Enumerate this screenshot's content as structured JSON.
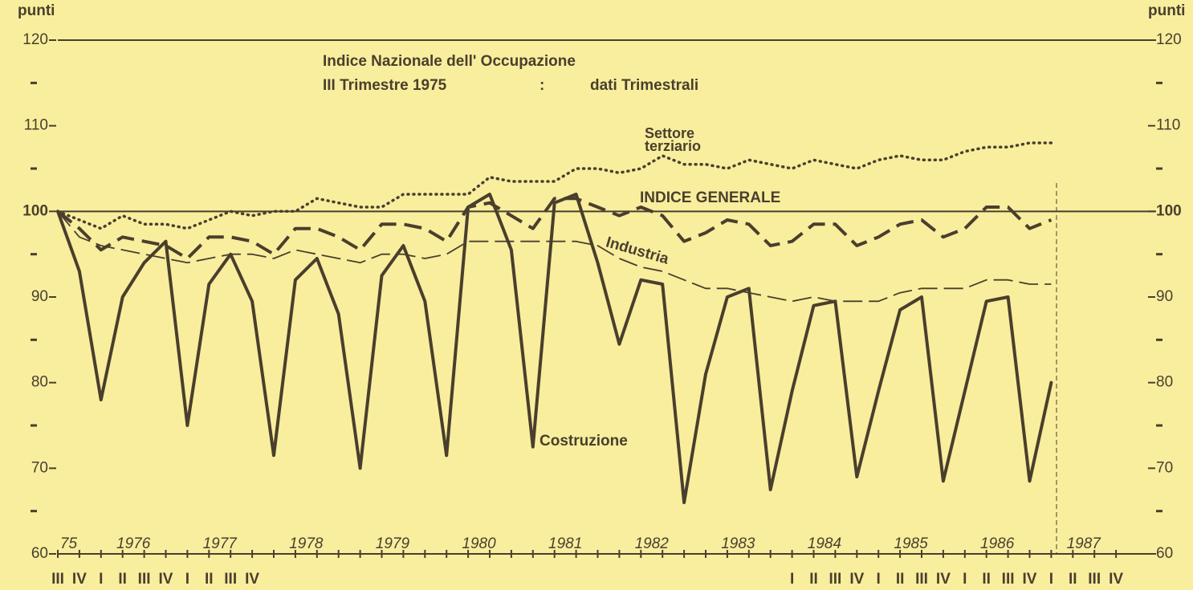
{
  "chart_data": {
    "type": "line",
    "title": "Indice Nazionale dell' Occupazione",
    "subtitle": [
      "III Trimestre 1975",
      ":",
      "dati Trimestrali"
    ],
    "y_unit_left": "punti",
    "y_unit_right": "punti",
    "ylim": [
      60,
      120
    ],
    "yticks": [
      60,
      70,
      80,
      90,
      100,
      110,
      120
    ],
    "minor_yticks": [
      65,
      75,
      85,
      95,
      105,
      115
    ],
    "reference_lines": [
      120,
      100
    ],
    "year_labels": [
      "75",
      "1976",
      "1977",
      "1978",
      "1979",
      "1980",
      "1981",
      "1982",
      "1983",
      "1984",
      "1985",
      "1986",
      "1987"
    ],
    "categories": [
      "III",
      "IV",
      "I",
      "II",
      "III",
      "IV",
      "I",
      "II",
      "III",
      "IV",
      null,
      null,
      null,
      null,
      null,
      null,
      null,
      null,
      null,
      null,
      null,
      null,
      null,
      null,
      null,
      null,
      null,
      null,
      null,
      null,
      null,
      null,
      null,
      null,
      "I",
      "II",
      "III",
      "IV",
      "I",
      "II",
      "III",
      "IV",
      "I",
      "II",
      "III",
      "IV",
      "I",
      "II",
      "III",
      "IV"
    ],
    "series": [
      {
        "name": "Settore terziario",
        "color": "#4a3f2c",
        "style": "dotted",
        "values": [
          100,
          99,
          98,
          99.5,
          98.5,
          98.5,
          98,
          99,
          100,
          99.5,
          100,
          100,
          101.5,
          101,
          100.5,
          100.5,
          102,
          102,
          102,
          102,
          104,
          103.5,
          103.5,
          103.5,
          105,
          105,
          104.5,
          105,
          106.5,
          105.5,
          105.5,
          105,
          106,
          105.5,
          105,
          106,
          105.5,
          105,
          106,
          106.5,
          106,
          106,
          107,
          107.5,
          107.5,
          108,
          108,
          null,
          null,
          null
        ]
      },
      {
        "name": "INDICE GENERALE",
        "color": "#4a3f2c",
        "style": "dashed",
        "values": [
          100,
          98,
          95.5,
          97,
          96.5,
          96,
          94.5,
          97,
          97,
          96.5,
          95,
          98,
          98,
          97,
          95.5,
          98.5,
          98.5,
          98,
          96.5,
          100.5,
          101,
          99.5,
          98,
          101.5,
          101.5,
          100.5,
          99.5,
          100.5,
          99.5,
          96.5,
          97.5,
          99,
          98.5,
          96,
          96.5,
          98.5,
          98.5,
          96,
          97,
          98.5,
          99,
          97,
          98,
          100.5,
          100.5,
          98,
          99,
          null,
          null,
          null
        ]
      },
      {
        "name": "Industria",
        "color": "#4a3f2c",
        "style": "thin-dashed",
        "values": [
          100,
          97,
          96,
          95.5,
          95,
          94.5,
          94,
          94.5,
          95,
          95,
          94.5,
          95.5,
          95,
          94.5,
          94,
          95,
          95,
          94.5,
          95,
          96.5,
          96.5,
          96.5,
          96.5,
          96.5,
          96.5,
          96,
          94.5,
          93.5,
          93,
          92,
          91,
          91,
          90.5,
          90,
          89.5,
          90,
          89.5,
          89.5,
          89.5,
          90.5,
          91,
          91,
          91,
          92,
          92,
          91.5,
          91.5,
          null,
          null,
          null
        ]
      },
      {
        "name": "Costruzione",
        "color": "#4a3f2c",
        "style": "solid",
        "values": [
          100,
          93,
          78,
          90,
          94,
          96.5,
          75,
          91.5,
          95,
          89.5,
          71.5,
          92,
          94.5,
          88,
          70,
          92.5,
          96,
          89.5,
          71.5,
          100.5,
          102,
          95.5,
          72.5,
          101,
          102,
          94,
          84.5,
          92,
          91.5,
          66,
          81,
          90,
          91,
          67.5,
          79,
          89,
          89.5,
          69,
          79,
          88.5,
          90,
          68.5,
          79,
          89.5,
          90,
          68.5,
          80,
          null,
          null,
          null
        ]
      }
    ]
  }
}
